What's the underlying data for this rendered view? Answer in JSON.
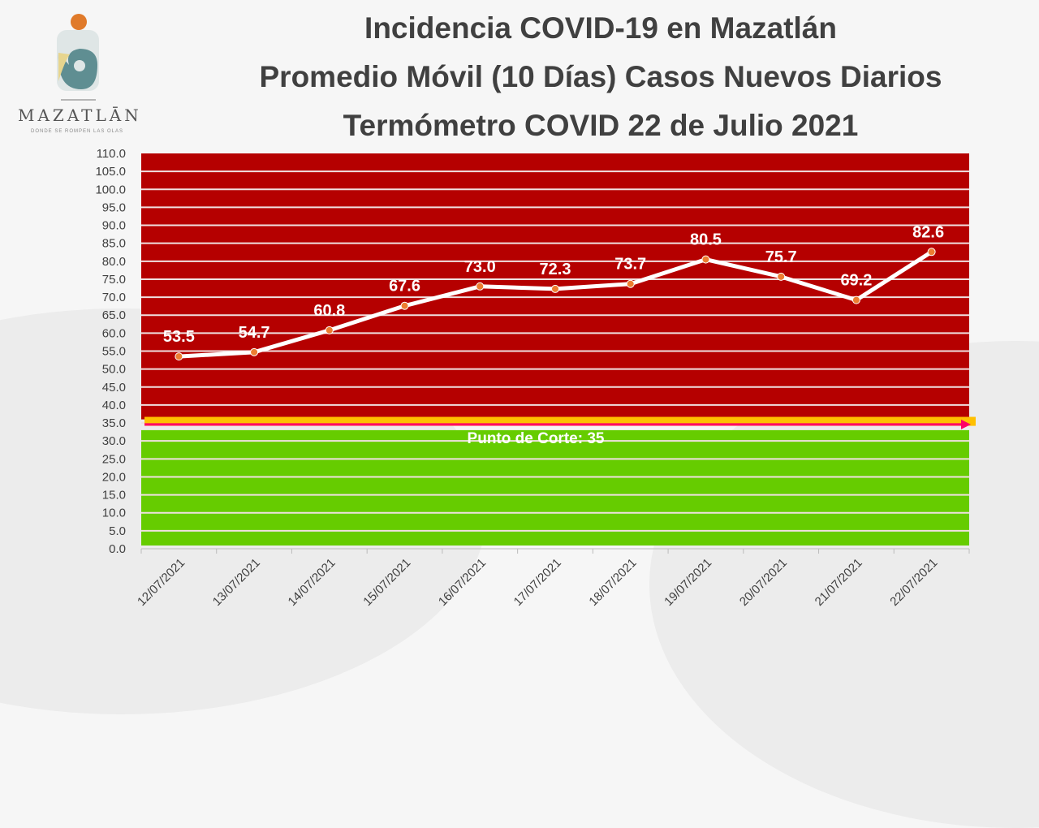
{
  "logo": {
    "word": "MAZATLĀN",
    "tagline": "DONDE SE ROMPEN LAS OLAS"
  },
  "chart_data": {
    "type": "line",
    "title": [
      "Incidencia COVID-19 en Mazatlán",
      "Promedio Móvil (10 Días) Casos Nuevos Diarios",
      "Termómetro COVID 22 de Julio 2021"
    ],
    "categories": [
      "12/07/2021",
      "13/07/2021",
      "14/07/2021",
      "15/07/2021",
      "16/07/2021",
      "17/07/2021",
      "18/07/2021",
      "19/07/2021",
      "20/07/2021",
      "21/07/2021",
      "22/07/2021"
    ],
    "values": [
      53.5,
      54.7,
      60.8,
      67.6,
      73.0,
      72.3,
      73.7,
      80.5,
      75.7,
      69.2,
      82.6
    ],
    "labels": [
      "53.5",
      "54.7",
      "60.8",
      "67.6",
      "73.0",
      "72.3",
      "73.7",
      "80.5",
      "75.7",
      "69.2",
      "82.6"
    ],
    "ylim": [
      0,
      110
    ],
    "ystep": 5,
    "threshold": 35,
    "threshold_label": "Punto de Corte: 35",
    "colors": {
      "high": "#b50000",
      "low": "#66cc00",
      "band": "#ffc000",
      "arrow": "#ff0066",
      "line": "#ffffff",
      "marker": "#ed7d31"
    },
    "grid": true
  }
}
